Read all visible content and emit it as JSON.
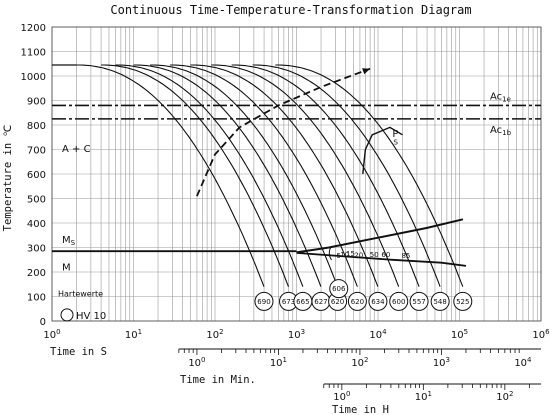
{
  "chart_data": {
    "type": "line",
    "title": "Continuous Time-Temperature-Transformation Diagram",
    "ylabel": "Temperature in ℃",
    "xlabel_seconds": "Time in S",
    "xlabel_minutes": "Time in Min.",
    "xlabel_hours": "Time in H",
    "ylim": [
      0,
      1200
    ],
    "y_ticks": [
      "0",
      "100",
      "200",
      "300",
      "400",
      "500",
      "600",
      "700",
      "800",
      "900",
      "1000",
      "1100",
      "1200"
    ],
    "x_log_range_seconds": [
      1,
      1000000
    ],
    "x_ticks_seconds": [
      {
        "value": 1,
        "base": "10",
        "exp": "0"
      },
      {
        "value": 10,
        "base": "10",
        "exp": "1"
      },
      {
        "value": 100,
        "base": "10",
        "exp": "2"
      },
      {
        "value": 1000,
        "base": "10",
        "exp": "3"
      },
      {
        "value": 10000,
        "base": "10",
        "exp": "4"
      },
      {
        "value": 100000,
        "base": "10",
        "exp": "5"
      },
      {
        "value": 1000000,
        "base": "10",
        "exp": "6"
      }
    ],
    "x_ticks_minutes": [
      {
        "value_s": 60,
        "base": "10",
        "exp": "0"
      },
      {
        "value_s": 600,
        "base": "10",
        "exp": "1"
      },
      {
        "value_s": 6000,
        "base": "10",
        "exp": "2"
      },
      {
        "value_s": 60000,
        "base": "10",
        "exp": "3"
      },
      {
        "value_s": 600000,
        "base": "10",
        "exp": "4"
      }
    ],
    "x_ticks_hours": [
      {
        "value_s": 3600,
        "base": "10",
        "exp": "0"
      },
      {
        "value_s": 36000,
        "base": "10",
        "exp": "1"
      },
      {
        "value_s": 360000,
        "base": "10",
        "exp": "2"
      }
    ],
    "ac1e": {
      "label": "Ac",
      "sub": "1e",
      "temperature": 880
    },
    "ac1b": {
      "label": "Ac",
      "sub": "1b",
      "temperature": 825
    },
    "ms": {
      "label": "M",
      "sub": "S",
      "temperature": 285
    },
    "m": {
      "label": "M",
      "temperature": 230
    },
    "phase_label_ac": "A + C",
    "phase_label_p": "P",
    "phase_label_p_sub": "S",
    "austenitizing_temperature": 1045,
    "hardness_legend_title": "Hartewerte",
    "hardness_legend_label": "HV 10",
    "cooling_curves": [
      {
        "t_start": 2,
        "hv": "690"
      },
      {
        "t_start": 4,
        "hv": "673"
      },
      {
        "t_start": 6,
        "hv": "665"
      },
      {
        "t_start": 10,
        "hv": "627"
      },
      {
        "t_start": 16,
        "hv": "620"
      },
      {
        "t_start": 28,
        "hv": "620"
      },
      {
        "t_start": 50,
        "hv": "634"
      },
      {
        "t_start": 90,
        "hv": "600"
      },
      {
        "t_start": 160,
        "hv": "557"
      },
      {
        "t_start": 290,
        "hv": "548"
      },
      {
        "t_start": 550,
        "hv": "525"
      }
    ],
    "extra_hv": {
      "hv": "606",
      "time": 3300,
      "temperature": 132
    },
    "transformation_labels": [
      "5",
      "10",
      "15",
      "20",
      "50",
      "60",
      "85"
    ],
    "dashed_curve": [
      {
        "t": 60,
        "temp": 510
      },
      {
        "t": 100,
        "temp": 680
      },
      {
        "t": 200,
        "temp": 790
      },
      {
        "t": 600,
        "temp": 880
      },
      {
        "t": 2000,
        "temp": 955
      },
      {
        "t": 8000,
        "temp": 1030
      }
    ],
    "ps_boundary": [
      {
        "t": 6500,
        "temp": 600
      },
      {
        "t": 7000,
        "temp": 700
      },
      {
        "t": 8500,
        "temp": 760
      },
      {
        "t": 14000,
        "temp": 790
      },
      {
        "t": 20000,
        "temp": 760
      }
    ],
    "bainite_upper": [
      {
        "t": 1000,
        "temp": 280
      },
      {
        "t": 2500,
        "temp": 300
      },
      {
        "t": 10000,
        "temp": 340
      },
      {
        "t": 40000,
        "temp": 380
      },
      {
        "t": 110000,
        "temp": 415
      }
    ],
    "bainite_lower": [
      {
        "t": 1000,
        "temp": 278
      },
      {
        "t": 3500,
        "temp": 265
      },
      {
        "t": 15000,
        "temp": 250
      },
      {
        "t": 60000,
        "temp": 238
      },
      {
        "t": 120000,
        "temp": 225
      }
    ]
  }
}
